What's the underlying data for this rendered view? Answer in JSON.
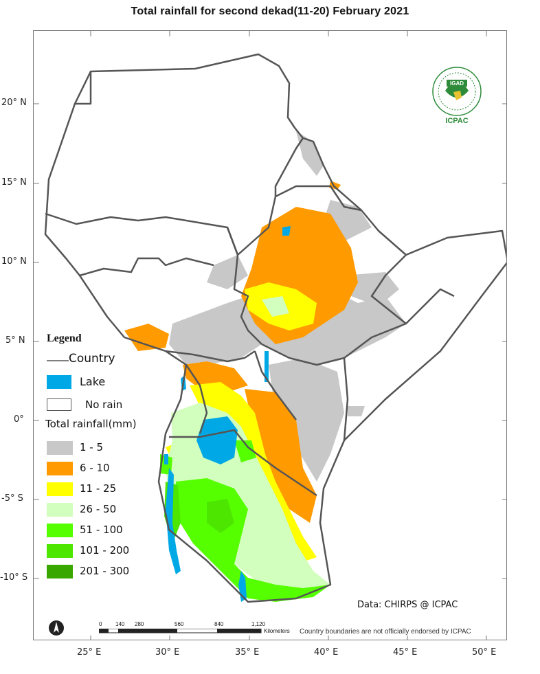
{
  "title": "Total rainfall for  second  dekad(11-20)  February 2021",
  "latitudes": [
    "20° N",
    "15° N",
    "10° N",
    "5° N",
    "0°",
    "-5° S",
    "-10° S"
  ],
  "longitudes": [
    "25° E",
    "30° E",
    "35° E",
    "40° E",
    "45° E",
    "50° E"
  ],
  "legend": {
    "title": "Legend",
    "country_label": "Country",
    "lake_label": "Lake",
    "norain_label": "No rain",
    "rainfall_title": "Total rainfall(mm)",
    "classes": [
      {
        "label": "1 - 5",
        "color": "#c8c8c8"
      },
      {
        "label": "6 - 10",
        "color": "#ff9a00"
      },
      {
        "label": "11 - 25",
        "color": "#ffff00"
      },
      {
        "label": "26 - 50",
        "color": "#d2ffbe"
      },
      {
        "label": "51 - 100",
        "color": "#55ff00"
      },
      {
        "label": "101 - 200",
        "color": "#4ce600"
      },
      {
        "label": "201 - 300",
        "color": "#38a800"
      }
    ],
    "lake_color": "#00a9e6",
    "border_color": "#555555"
  },
  "credit": "Data: CHIRPS @ ICPAC",
  "disclaimer": "Country boundaries are not officially endorsed by ICPAC",
  "scalebar": {
    "ticks": [
      "0",
      "140",
      "280",
      "560",
      "840",
      "1,120"
    ],
    "units": "Kilometers"
  },
  "logo": {
    "top_text": "IGAD",
    "bottom_text": "ICPAC"
  }
}
